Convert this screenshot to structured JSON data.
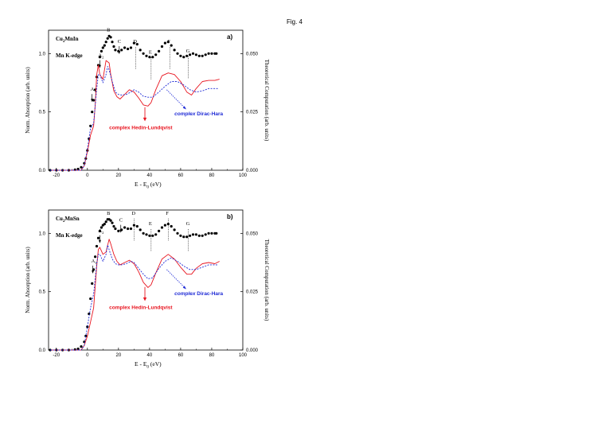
{
  "figure_label": "Fig. 4",
  "colors": {
    "experiment": "#000000",
    "hedin": "#e8141f",
    "dirac": "#1f2bd6"
  },
  "chart_data": [
    {
      "type": "line",
      "panel_tag": "a)",
      "title_line1_base": "Cu",
      "title_line1_sub": "2",
      "title_line1_rest": "MnIn",
      "title_line2": "Mn K-edge",
      "xlabel_base": "E - E",
      "xlabel_sub": "0",
      "xlabel_unit": " (eV)",
      "ylabel_left": "Norm. Absorption (arb. units)",
      "ylabel_right": "Theoretical Computation (arb. units)",
      "xlim": [
        -25,
        100
      ],
      "ylim_left": [
        0,
        1.2
      ],
      "ylim_right": [
        0,
        0.06
      ],
      "xticks": [
        "-20",
        "0",
        "20",
        "40",
        "60",
        "80",
        "100"
      ],
      "yticks_left": [
        "0.0",
        "0.5",
        "1.0"
      ],
      "yticks_right": [
        "0.000",
        "0.025",
        "0.050"
      ],
      "annotation_hedin": "complex Hedin-Lundqvist",
      "annotation_dirac_prefix": "complex",
      "annotation_dirac_rest": " Dirac-Hara",
      "peaks": [
        {
          "label": "A",
          "sub": "1",
          "x": 3.5,
          "y": 0.66
        },
        {
          "label": "A",
          "sub": "2",
          "x": 8.5,
          "y": 0.95
        },
        {
          "label": "B",
          "sub": "",
          "x": 14,
          "y": 1.17
        },
        {
          "label": "C",
          "sub": "",
          "x": 21,
          "y": 1.07
        },
        {
          "label": "D",
          "sub": "",
          "x": 31,
          "y": 1.07
        },
        {
          "label": "E",
          "sub": "",
          "x": 41,
          "y": 0.98
        },
        {
          "label": "F",
          "sub": "",
          "x": 53,
          "y": 1.07
        },
        {
          "label": "G",
          "sub": "",
          "x": 65,
          "y": 0.99
        }
      ],
      "series": [
        {
          "name": "experiment",
          "style": "dots",
          "x": [
            -24,
            -20,
            -16,
            -12,
            -8,
            -6,
            -4,
            -2,
            -1,
            0,
            1,
            2,
            3,
            4,
            5,
            6,
            7,
            8,
            9,
            10,
            11,
            12,
            13,
            14,
            15,
            16,
            17,
            18,
            20,
            22,
            24,
            26,
            28,
            30,
            32,
            34,
            36,
            38,
            40,
            42,
            44,
            46,
            48,
            50,
            52,
            54,
            56,
            58,
            60,
            62,
            64,
            66,
            68,
            70,
            72,
            74,
            76,
            78,
            80,
            82,
            83
          ],
          "y": [
            0.0,
            0.0,
            0.0,
            0.0,
            0.005,
            0.01,
            0.025,
            0.06,
            0.1,
            0.17,
            0.27,
            0.38,
            0.5,
            0.6,
            0.69,
            0.8,
            0.9,
            0.97,
            1.02,
            1.05,
            1.07,
            1.1,
            1.13,
            1.15,
            1.14,
            1.1,
            1.06,
            1.03,
            1.02,
            1.03,
            1.05,
            1.04,
            1.05,
            1.09,
            1.08,
            1.03,
            1.0,
            0.98,
            0.97,
            0.97,
            0.99,
            1.02,
            1.06,
            1.09,
            1.1,
            1.07,
            1.03,
            1.0,
            0.98,
            0.97,
            0.98,
            0.99,
            1.0,
            0.99,
            0.98,
            0.98,
            0.99,
            1.0,
            1.0,
            1.0,
            1.0
          ]
        },
        {
          "name": "complex Hedin-Lundqvist",
          "style": "solid",
          "x": [
            -24,
            -10,
            -4,
            -2,
            0,
            2,
            4,
            5,
            6,
            7,
            8,
            10,
            12,
            14,
            15,
            17,
            19,
            21,
            24,
            27,
            30,
            33,
            36,
            39,
            41,
            44,
            48,
            52,
            56,
            60,
            64,
            67,
            70,
            74,
            78,
            82,
            85
          ],
          "y": [
            0.0,
            0.0,
            0.0,
            0.002,
            0.008,
            0.015,
            0.019,
            0.028,
            0.041,
            0.045,
            0.041,
            0.039,
            0.047,
            0.046,
            0.041,
            0.034,
            0.0315,
            0.0305,
            0.0325,
            0.0345,
            0.0335,
            0.031,
            0.028,
            0.0275,
            0.029,
            0.0345,
            0.0405,
            0.0417,
            0.041,
            0.038,
            0.0335,
            0.0322,
            0.035,
            0.038,
            0.0385,
            0.0385,
            0.039
          ]
        },
        {
          "name": "complex Dirac-Hara",
          "style": "dashed",
          "x": [
            -24,
            -10,
            -4,
            -2,
            0,
            2,
            4,
            6,
            7,
            8,
            10,
            12,
            13,
            14,
            16,
            18,
            20,
            22,
            25,
            28,
            30,
            33,
            36,
            39,
            42,
            46,
            50,
            54,
            58,
            62,
            66,
            70,
            74,
            78,
            82,
            84
          ],
          "y": [
            0.0,
            0.0,
            0.0,
            0.002,
            0.009,
            0.018,
            0.02,
            0.035,
            0.041,
            0.041,
            0.0375,
            0.041,
            0.0445,
            0.043,
            0.038,
            0.0335,
            0.0325,
            0.0322,
            0.0325,
            0.0335,
            0.0345,
            0.0335,
            0.0317,
            0.0313,
            0.0313,
            0.0335,
            0.036,
            0.038,
            0.038,
            0.0365,
            0.0345,
            0.0335,
            0.034,
            0.035,
            0.035,
            0.035
          ]
        }
      ]
    },
    {
      "type": "line",
      "panel_tag": "b)",
      "title_line1_base": "Cu",
      "title_line1_sub": "2",
      "title_line1_rest": "MnSn",
      "title_line2": "Mn K-edge",
      "xlabel_base": "E - E",
      "xlabel_sub": "0",
      "xlabel_unit": " (eV)",
      "ylabel_left": "Norm. Absorption (arb. units)",
      "ylabel_right": "Theoretical Computation (arb. units)",
      "xlim": [
        -25,
        100
      ],
      "ylim_left": [
        0,
        1.2
      ],
      "ylim_right": [
        0,
        0.06
      ],
      "xticks": [
        "-20",
        "0",
        "20",
        "40",
        "60",
        "80",
        "100"
      ],
      "yticks_left": [
        "0.0",
        "0.5",
        "1.0"
      ],
      "yticks_right": [
        "0.000",
        "0.025",
        "0.050"
      ],
      "annotation_hedin": "complex Hedin-Lundqvist",
      "annotation_dirac_prefix": "complex",
      "annotation_dirac_rest": " Dirac-Hara",
      "peaks": [
        {
          "label": "A",
          "sub": "1",
          "x": 4,
          "y": 0.73
        },
        {
          "label": "A",
          "sub": "2",
          "x": 8.5,
          "y": 0.99
        },
        {
          "label": "B",
          "sub": "",
          "x": 14,
          "y": 1.14
        },
        {
          "label": "C",
          "sub": "",
          "x": 22,
          "y": 1.08
        },
        {
          "label": "D",
          "sub": "",
          "x": 30,
          "y": 1.14
        },
        {
          "label": "E",
          "sub": "",
          "x": 41,
          "y": 1.05
        },
        {
          "label": "F",
          "sub": "",
          "x": 52,
          "y": 1.14
        },
        {
          "label": "G",
          "sub": "",
          "x": 65,
          "y": 1.05
        }
      ],
      "series": [
        {
          "name": "experiment",
          "style": "dots",
          "x": [
            -24,
            -20,
            -16,
            -12,
            -8,
            -6,
            -4,
            -2,
            -1,
            0,
            1,
            2,
            3,
            4,
            5,
            6,
            7,
            8,
            9,
            10,
            11,
            12,
            13,
            14,
            15,
            16,
            17,
            18,
            20,
            22,
            24,
            26,
            28,
            30,
            32,
            34,
            36,
            38,
            40,
            42,
            44,
            46,
            48,
            50,
            52,
            54,
            56,
            58,
            60,
            62,
            64,
            66,
            68,
            70,
            72,
            74,
            76,
            78,
            80,
            82,
            83
          ],
          "y": [
            0.0,
            0.0,
            0.0,
            0.0,
            0.005,
            0.01,
            0.03,
            0.07,
            0.12,
            0.2,
            0.31,
            0.44,
            0.57,
            0.69,
            0.8,
            0.89,
            0.96,
            1.02,
            1.05,
            1.07,
            1.08,
            1.1,
            1.12,
            1.12,
            1.11,
            1.09,
            1.06,
            1.04,
            1.02,
            1.03,
            1.05,
            1.04,
            1.04,
            1.07,
            1.06,
            1.03,
            1.0,
            0.99,
            0.98,
            0.98,
            0.99,
            1.02,
            1.05,
            1.07,
            1.08,
            1.06,
            1.03,
            1.0,
            0.98,
            0.97,
            0.97,
            0.98,
            0.99,
            0.99,
            0.98,
            0.98,
            0.99,
            1.0,
            1.0,
            1.0,
            1.0
          ]
        },
        {
          "name": "complex Hedin-Lundqvist",
          "style": "solid",
          "x": [
            -24,
            -10,
            -4,
            -2,
            0,
            2,
            4,
            6,
            7,
            8,
            10,
            12,
            14,
            15,
            17,
            19,
            21,
            24,
            27,
            30,
            33,
            36,
            39,
            41,
            44,
            48,
            52,
            56,
            60,
            64,
            67,
            70,
            74,
            78,
            82,
            85
          ],
          "y": [
            0.0,
            0.0,
            0.0,
            0.002,
            0.006,
            0.012,
            0.018,
            0.036,
            0.043,
            0.044,
            0.041,
            0.042,
            0.0475,
            0.0455,
            0.041,
            0.038,
            0.0365,
            0.0375,
            0.0385,
            0.037,
            0.0335,
            0.029,
            0.0268,
            0.028,
            0.033,
            0.039,
            0.041,
            0.039,
            0.0355,
            0.0325,
            0.0325,
            0.035,
            0.037,
            0.0375,
            0.037,
            0.038
          ]
        },
        {
          "name": "complex Dirac-Hara",
          "style": "dashed",
          "x": [
            -24,
            -10,
            -4,
            -2,
            0,
            2,
            4,
            6,
            7,
            8,
            10,
            12,
            13,
            14,
            16,
            18,
            20,
            22,
            25,
            28,
            30,
            33,
            36,
            39,
            42,
            46,
            50,
            54,
            58,
            62,
            66,
            70,
            74,
            78,
            82,
            84
          ],
          "y": [
            0.0,
            0.0,
            0.0,
            0.002,
            0.01,
            0.018,
            0.024,
            0.037,
            0.041,
            0.041,
            0.038,
            0.041,
            0.045,
            0.043,
            0.039,
            0.037,
            0.0365,
            0.0365,
            0.037,
            0.038,
            0.0375,
            0.035,
            0.0325,
            0.0305,
            0.031,
            0.035,
            0.038,
            0.0395,
            0.038,
            0.036,
            0.0345,
            0.0345,
            0.0355,
            0.0365,
            0.0365,
            0.0365
          ]
        }
      ]
    }
  ]
}
